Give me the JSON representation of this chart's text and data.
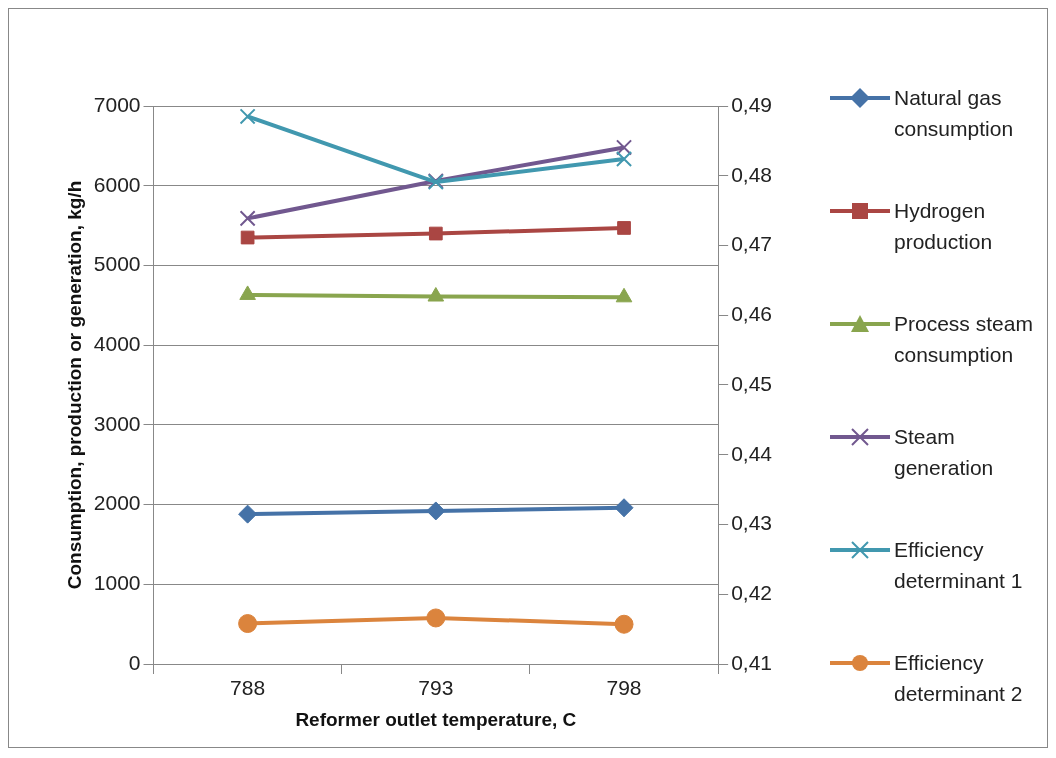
{
  "chart_data": {
    "type": "line",
    "xlabel": "Reformer outlet temperature, C",
    "ylabel": "Consumption, production or generation, kg/h",
    "categories": [
      "788",
      "793",
      "798"
    ],
    "ylim": [
      0,
      7000
    ],
    "yticks": [
      0,
      1000,
      2000,
      3000,
      4000,
      5000,
      6000,
      7000
    ],
    "y2lim": [
      0.41,
      0.49
    ],
    "y2ticks": [
      {
        "value": 0.41,
        "label": "0,41"
      },
      {
        "value": 0.42,
        "label": "0,42"
      },
      {
        "value": 0.43,
        "label": "0,43"
      },
      {
        "value": 0.44,
        "label": "0,44"
      },
      {
        "value": 0.45,
        "label": "0,45"
      },
      {
        "value": 0.46,
        "label": "0,46"
      },
      {
        "value": 0.47,
        "label": "0,47"
      },
      {
        "value": 0.48,
        "label": "0,48"
      },
      {
        "value": 0.49,
        "label": "0,49"
      }
    ],
    "grid": "y",
    "legend": "right",
    "series": [
      {
        "name": "Natural gas consumption",
        "color": "#4572a7",
        "marker": "diamond",
        "values": [
          1880,
          1920,
          1960
        ]
      },
      {
        "name": "Hydrogen production",
        "color": "#aa4643",
        "marker": "square",
        "values": [
          5350,
          5400,
          5470
        ]
      },
      {
        "name": "Process steam consumption",
        "color": "#89a54e",
        "marker": "triangle",
        "values": [
          4630,
          4610,
          4600
        ]
      },
      {
        "name": "Steam generation",
        "color": "#71588f",
        "marker": "cross",
        "values": [
          5590,
          6060,
          6480
        ]
      },
      {
        "name": "Efficiency determinant 1",
        "color": "#4198af",
        "marker": "cross",
        "axis": "y2",
        "values": [
          0.4885,
          0.4791,
          0.4824
        ]
      },
      {
        "name": "Efficiency determinant 2",
        "color": "#db843d",
        "marker": "circle",
        "axis": "y2",
        "values": [
          0.4158,
          0.4166,
          0.4157
        ]
      }
    ]
  }
}
